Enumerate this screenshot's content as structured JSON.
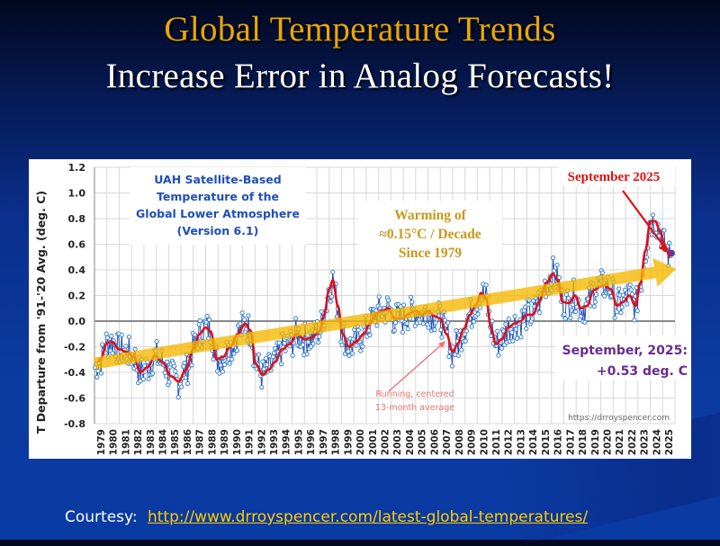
{
  "slide": {
    "title_line1": "Global Temperature Trends",
    "title_line2": "Increase Error in Analog Forecasts!",
    "courtesy_label": "Courtesy:",
    "courtesy_link": "http://www.drroyspencer.com/latest-global-temperatures/"
  },
  "colors": {
    "title_gold": "#e8a800",
    "series_blue": "#1f4fb8",
    "marker_blue": "#3a7fc8",
    "running_red": "#e0101a",
    "trend_yellow": "#f5b800",
    "annotation_red": "#e01010",
    "annotation_purple": "#6a2c91",
    "box_title_blue": "#1f4fb8",
    "warming_gold": "#c9981b",
    "running_label": "#f07070"
  },
  "chart_data": {
    "type": "line",
    "title": "UAH Satellite-Based Temperature of the Global Lower Atmosphere (Version 6.1)",
    "title_lines": [
      "UAH Satellite-Based",
      "Temperature of the",
      "Global Lower Atmosphere",
      "(Version 6.1)"
    ],
    "ylabel": "T Departure from '91-'20 Avg. (deg. C)",
    "xlabel": "",
    "ylim": [
      -0.8,
      1.2
    ],
    "yticks": [
      "1.2",
      "1.0",
      "0.8",
      "0.6",
      "0.4",
      "0.2",
      "0.0",
      "-0.2",
      "-0.4",
      "-0.6",
      "-0.8"
    ],
    "ytick_values": [
      1.2,
      1.0,
      0.8,
      0.6,
      0.4,
      0.2,
      0.0,
      -0.2,
      -0.4,
      -0.6,
      -0.8
    ],
    "xticks": [
      "1979",
      "1980",
      "1981",
      "1982",
      "1983",
      "1984",
      "1985",
      "1986",
      "1987",
      "1988",
      "1989",
      "1990",
      "1991",
      "1992",
      "1993",
      "1994",
      "1995",
      "1996",
      "1997",
      "1998",
      "1999",
      "2000",
      "2001",
      "2002",
      "2003",
      "2004",
      "2005",
      "2006",
      "2007",
      "2008",
      "2009",
      "2010",
      "2011",
      "2012",
      "2013",
      "2014",
      "2015",
      "2016",
      "2017",
      "2018",
      "2019",
      "2020",
      "2021",
      "2022",
      "2023",
      "2024",
      "2025"
    ],
    "x_start_year": 1979,
    "grid": true,
    "running_mean_knots": {
      "x": [
        1979.0,
        1979.5,
        1980.0,
        1980.4,
        1981.0,
        1981.6,
        1982.2,
        1982.7,
        1983.3,
        1983.9,
        1984.5,
        1985.2,
        1985.8,
        1986.4,
        1987.0,
        1987.5,
        1988.0,
        1988.4,
        1988.9,
        1989.4,
        1990.0,
        1990.6,
        1991.2,
        1991.6,
        1992.1,
        1992.6,
        1993.1,
        1993.6,
        1994.2,
        1994.8,
        1995.4,
        1996.0,
        1996.6,
        1997.2,
        1997.6,
        1998.0,
        1998.3,
        1998.7,
        1999.1,
        1999.6,
        2000.2,
        2000.8,
        2001.3,
        2001.8,
        2002.3,
        2002.8,
        2003.3,
        2003.9,
        2004.5,
        2005.0,
        2005.5,
        2006.0,
        2006.5,
        2007.0,
        2007.5,
        2008.0,
        2008.4,
        2008.9,
        2009.4,
        2009.9,
        2010.3,
        2010.7,
        2011.1,
        2011.5,
        2012.0,
        2012.5,
        2013.0,
        2013.5,
        2014.0,
        2014.5,
        2015.0,
        2015.6,
        2016.1,
        2016.5,
        2016.9,
        2017.4,
        2017.9,
        2018.4,
        2018.9,
        2019.4,
        2019.9,
        2020.3,
        2020.8,
        2021.3,
        2021.8,
        2022.3,
        2022.8,
        2023.2,
        2023.6,
        2024.0,
        2024.4,
        2024.8,
        2025.2,
        2025.6
      ],
      "y": [
        -0.36,
        -0.3,
        -0.17,
        -0.16,
        -0.22,
        -0.24,
        -0.28,
        -0.4,
        -0.36,
        -0.27,
        -0.32,
        -0.43,
        -0.47,
        -0.38,
        -0.22,
        -0.1,
        -0.05,
        -0.08,
        -0.3,
        -0.28,
        -0.2,
        -0.1,
        -0.02,
        -0.07,
        -0.34,
        -0.42,
        -0.38,
        -0.32,
        -0.22,
        -0.18,
        -0.1,
        -0.14,
        -0.13,
        -0.08,
        0.05,
        0.25,
        0.32,
        0.12,
        -0.1,
        -0.2,
        -0.16,
        -0.1,
        -0.02,
        0.06,
        0.08,
        0.1,
        0.02,
        0.02,
        0.06,
        0.08,
        0.05,
        0.08,
        0.04,
        0.02,
        -0.1,
        -0.24,
        -0.18,
        -0.06,
        0.05,
        0.13,
        0.22,
        0.18,
        -0.05,
        -0.18,
        -0.14,
        -0.05,
        -0.02,
        0.0,
        0.05,
        0.05,
        0.15,
        0.3,
        0.37,
        0.32,
        0.15,
        0.14,
        0.2,
        0.1,
        0.12,
        0.24,
        0.27,
        0.28,
        0.25,
        0.12,
        0.15,
        0.2,
        0.12,
        0.3,
        0.55,
        0.78,
        0.78,
        0.7,
        0.58,
        0.5
      ]
    },
    "monthly_anomaly_seed": 7,
    "monthly_noise_amplitude": 0.13,
    "final_value": 0.53,
    "final_label": "September 2025",
    "trend": {
      "start_year": 1979,
      "start_value": -0.33,
      "end_year": 2025.7,
      "end_value": 0.38,
      "rate_per_decade": 0.15
    },
    "annotations": {
      "warming": [
        "Warming of",
        "≈0.15°C / Decade",
        "Since 1979"
      ],
      "september_top": "September 2025",
      "september_value_line1": "September, 2025:",
      "september_value_line2": "+0.53 deg. C",
      "running_mean": [
        "Running, centered",
        "13-month average"
      ],
      "source": "https://drroyspencer.com"
    }
  }
}
